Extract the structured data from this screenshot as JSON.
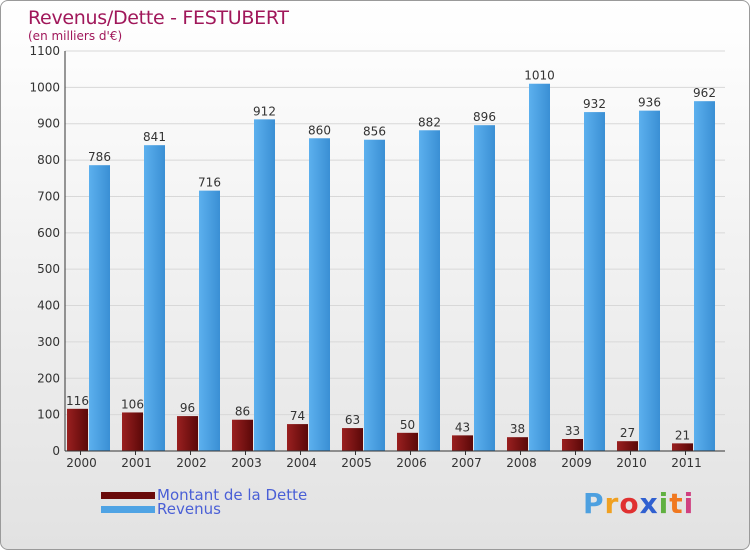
{
  "title": "Revenus/Dette - FESTUBERT",
  "subtitle": "(en milliers d'€)",
  "brand": "Proxiti",
  "colors": {
    "dette": "#7a0f0f",
    "revenus": "#4fa3e4",
    "title": "#a0175a",
    "legend_text": "#4a5fd6"
  },
  "chart_data": {
    "type": "bar",
    "title": "Revenus/Dette - FESTUBERT",
    "subtitle": "(en milliers d'€)",
    "categories": [
      "2000",
      "2001",
      "2002",
      "2003",
      "2004",
      "2005",
      "2006",
      "2007",
      "2008",
      "2009",
      "2010",
      "2011"
    ],
    "series": [
      {
        "name": "Montant de la Dette",
        "values": [
          116,
          106,
          96,
          86,
          74,
          63,
          50,
          43,
          38,
          33,
          27,
          21
        ]
      },
      {
        "name": "Revenus",
        "values": [
          786,
          841,
          716,
          912,
          860,
          856,
          882,
          896,
          1010,
          932,
          936,
          962
        ]
      }
    ],
    "ylim": [
      0,
      1100
    ],
    "yticks": [
      0,
      100,
      200,
      300,
      400,
      500,
      600,
      700,
      800,
      900,
      1000,
      1100
    ],
    "grid": true,
    "legend": "bottom-left"
  },
  "legend": [
    {
      "label": "Montant de la Dette"
    },
    {
      "label": "Revenus"
    }
  ]
}
